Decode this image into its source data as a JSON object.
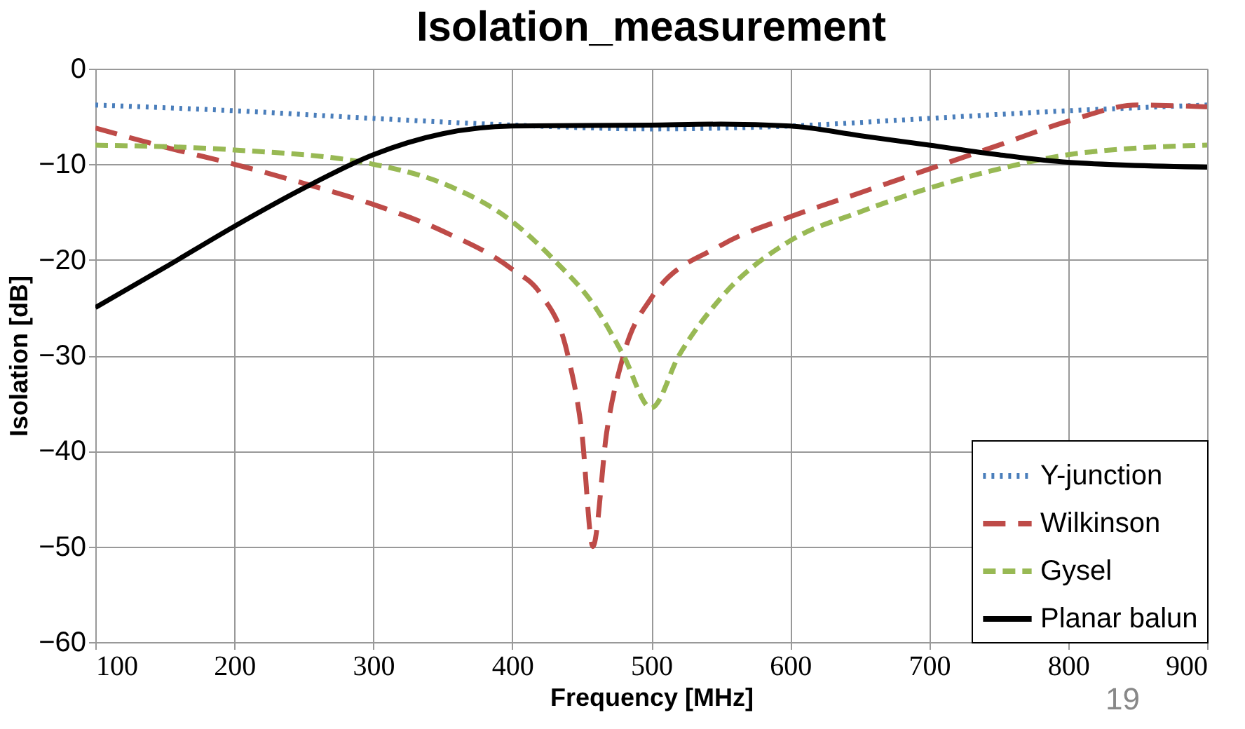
{
  "chart_data": {
    "type": "line",
    "title": "Isolation_measurement",
    "xlabel": "Frequency [MHz]",
    "ylabel": "Isolation [dB]",
    "xlim": [
      100,
      900
    ],
    "xticks": [
      100,
      200,
      300,
      400,
      500,
      600,
      700,
      800,
      900
    ],
    "ylim": [
      -60,
      0
    ],
    "yticks": [
      -60,
      -50,
      -40,
      -30,
      -20,
      -10,
      0
    ],
    "grid": true,
    "legend": "bottom right",
    "annotations": [
      "19"
    ],
    "series": [
      {
        "name": "Y-junction",
        "color": "#4a7ebb",
        "line_style": "dotted",
        "x": [
          100,
          200,
          300,
          400,
          500,
          600,
          700,
          800,
          900
        ],
        "values": [
          -3.8,
          -4.4,
          -5.2,
          -5.9,
          -6.3,
          -6.0,
          -5.2,
          -4.4,
          -3.8
        ]
      },
      {
        "name": "Wilkinson",
        "color": "#be4b48",
        "line_style": "dashed",
        "x": [
          100,
          150,
          200,
          250,
          300,
          350,
          400,
          420,
          440,
          450,
          458,
          468,
          480,
          500,
          550,
          600,
          650,
          700,
          750,
          800,
          850,
          900
        ],
        "values": [
          -6.2,
          -8.2,
          -10,
          -12,
          -14.2,
          -17,
          -21,
          -23.5,
          -30,
          -38,
          -50,
          -38,
          -30,
          -24,
          -18.5,
          -15.5,
          -13,
          -10.5,
          -8,
          -5.5,
          -3.8,
          -4
        ]
      },
      {
        "name": "Gysel",
        "color": "#98b954",
        "line_style": "dashed",
        "x": [
          100,
          200,
          300,
          350,
          400,
          430,
          460,
          480,
          500,
          520,
          550,
          600,
          650,
          700,
          750,
          800,
          850,
          900
        ],
        "values": [
          -8,
          -8.5,
          -10,
          -12,
          -16,
          -20,
          -25,
          -30,
          -35.5,
          -30,
          -24,
          -18,
          -15,
          -12.5,
          -10.5,
          -9,
          -8.3,
          -8
        ]
      },
      {
        "name": "Planar balun",
        "color": "#000000",
        "line_style": "solid",
        "x": [
          100,
          150,
          200,
          250,
          300,
          350,
          400,
          500,
          550,
          600,
          650,
          700,
          750,
          800,
          900
        ],
        "values": [
          -25,
          -20.8,
          -16.5,
          -12.5,
          -9,
          -6.8,
          -6,
          -5.9,
          -5.8,
          -6,
          -7,
          -8,
          -9,
          -9.8,
          -10.3
        ]
      }
    ]
  }
}
